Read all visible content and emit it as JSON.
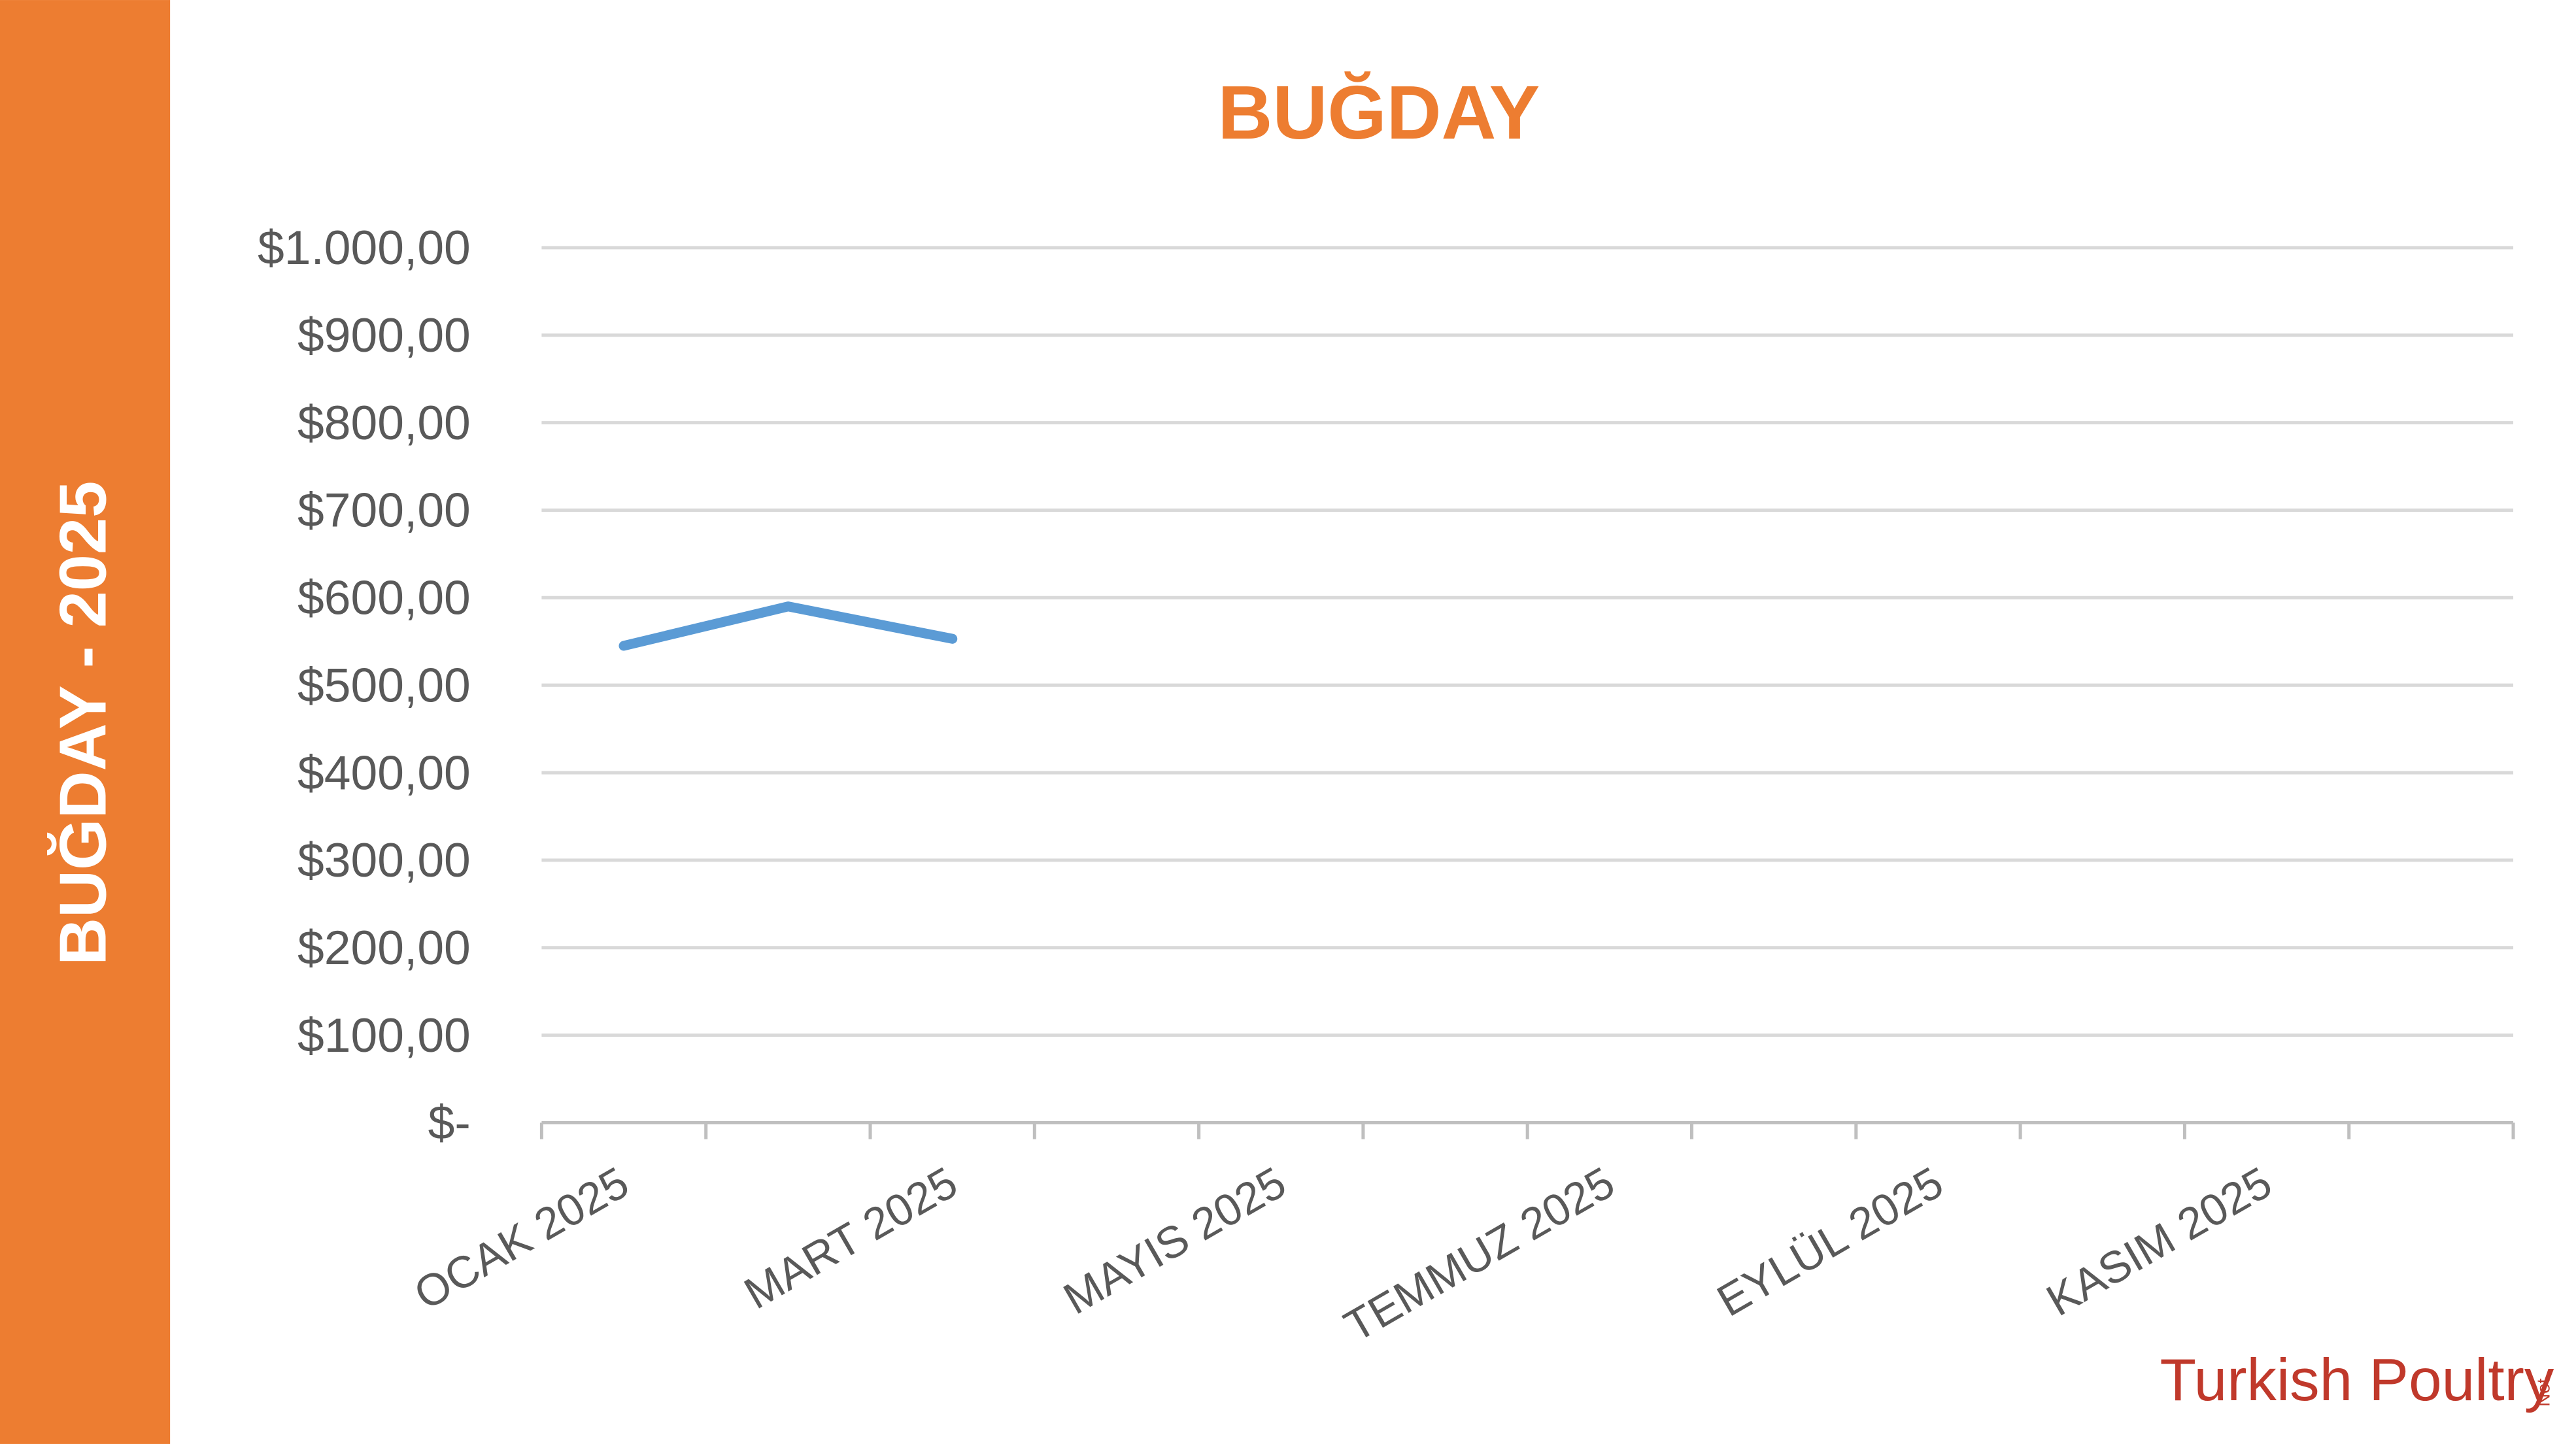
{
  "sidebar_title": "BUĞDAY - 2025",
  "chart_data": {
    "type": "line",
    "title": "BUĞDAY",
    "categories": [
      "OCAK 2025",
      null,
      "MART 2025",
      null,
      "MAYIS 2025",
      null,
      "TEMMUZ 2025",
      null,
      "EYLÜL 2025",
      null,
      "KASIM 2025",
      null
    ],
    "values": [
      545,
      590,
      553,
      null,
      null,
      null,
      null,
      null,
      null,
      null,
      null,
      null
    ],
    "color": "#5b9bd5",
    "ylim": [
      0,
      1000
    ],
    "yticks": [
      {
        "value": 0,
        "label": "$-"
      },
      {
        "value": 100,
        "label": "$100,00"
      },
      {
        "value": 200,
        "label": "$200,00"
      },
      {
        "value": 300,
        "label": "$300,00"
      },
      {
        "value": 400,
        "label": "$400,00"
      },
      {
        "value": 500,
        "label": "$500,00"
      },
      {
        "value": 600,
        "label": "$600,00"
      },
      {
        "value": 700,
        "label": "$700,00"
      },
      {
        "value": 800,
        "label": "$800,00"
      },
      {
        "value": 900,
        "label": "$900,00"
      },
      {
        "value": 1000,
        "label": "$1.000,00"
      }
    ],
    "grid": true
  },
  "logo": {
    "main": "Turkish Poultry",
    "sub": "Net"
  }
}
